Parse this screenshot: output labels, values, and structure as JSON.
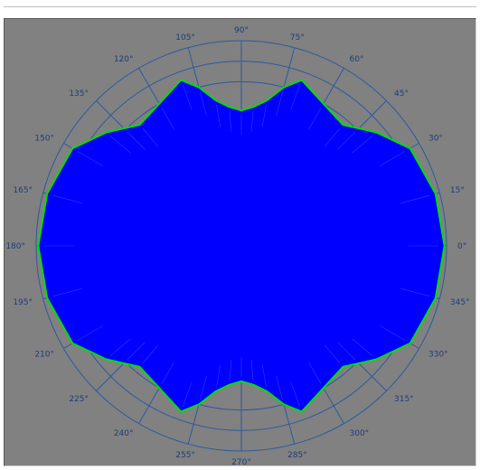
{
  "chart_data": {
    "type": "polar-area",
    "title": "",
    "angle_unit": "degrees",
    "angle_tick_labels": [
      "0°",
      "15°",
      "30°",
      "45°",
      "60°",
      "75°",
      "90°",
      "105°",
      "120°",
      "135°",
      "150°",
      "165°",
      "180°",
      "195°",
      "210°",
      "225°",
      "240°",
      "255°",
      "270°",
      "285°",
      "300°",
      "315°",
      "330°",
      "345°"
    ],
    "angle_ticks": [
      0,
      15,
      30,
      45,
      60,
      75,
      90,
      105,
      120,
      135,
      150,
      165,
      180,
      195,
      210,
      225,
      240,
      255,
      270,
      285,
      300,
      315,
      330,
      345
    ],
    "radial_range": [
      0,
      1
    ],
    "radial_rings": [
      0.2,
      0.4,
      0.6,
      0.8,
      0.9,
      1.0
    ],
    "series": [
      {
        "theta": [
          0,
          15,
          30,
          40,
          45,
          50,
          60,
          70,
          75,
          80,
          85,
          90,
          95,
          100,
          105,
          110,
          120,
          130,
          135,
          140,
          150,
          165,
          180,
          195,
          210,
          220,
          225,
          230,
          240,
          250,
          255,
          260,
          265,
          270,
          275,
          280,
          285,
          290,
          300,
          310,
          315,
          320,
          330,
          345
        ],
        "r": [
          0.99,
          0.98,
          0.95,
          0.86,
          0.81,
          0.77,
          0.8,
          0.86,
          0.8,
          0.72,
          0.68,
          0.66,
          0.68,
          0.72,
          0.8,
          0.86,
          0.8,
          0.77,
          0.81,
          0.86,
          0.95,
          0.98,
          0.99,
          0.98,
          0.95,
          0.86,
          0.81,
          0.77,
          0.8,
          0.86,
          0.8,
          0.72,
          0.68,
          0.66,
          0.68,
          0.72,
          0.8,
          0.86,
          0.8,
          0.77,
          0.81,
          0.86,
          0.95,
          0.98
        ]
      }
    ],
    "grid": true,
    "colors": {
      "plot_background": "#818181",
      "grid": "#2a5aa0",
      "fill": "#0000ff",
      "outline": "#00e000",
      "label": "#1e3c7a"
    }
  }
}
